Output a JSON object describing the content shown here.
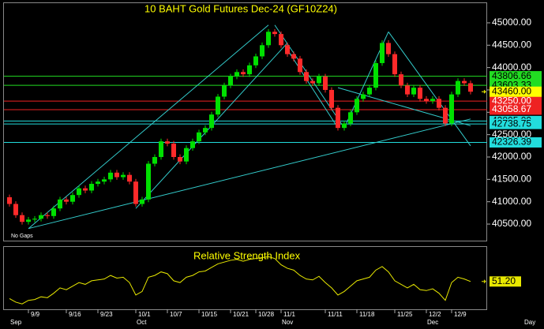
{
  "chart_data": {
    "type": "candlestick",
    "title": "10 BAHT  Gold Futures Dec-24  (GF10Z24)",
    "footnote": "No Gaps",
    "x_label": "Day",
    "categories": [
      null,
      null,
      null,
      "9/9",
      null,
      null,
      null,
      null,
      null,
      "9/16",
      null,
      null,
      null,
      null,
      "9/23",
      null,
      null,
      null,
      null,
      null,
      "10/1",
      null,
      null,
      null,
      null,
      "10/7",
      null,
      null,
      null,
      null,
      "10/15",
      null,
      null,
      null,
      null,
      "10/21",
      null,
      null,
      null,
      "10/28",
      null,
      null,
      null,
      "11/1",
      null,
      null,
      null,
      null,
      null,
      null,
      "11/11",
      null,
      null,
      null,
      null,
      "11/18",
      null,
      null,
      null,
      null,
      null,
      "11/25",
      null,
      null,
      null,
      null,
      "12/2",
      null,
      null,
      null,
      "12/9",
      null,
      null,
      null
    ],
    "months": [
      "Sep",
      null,
      null,
      null,
      null,
      null,
      null,
      null,
      null,
      null,
      null,
      null,
      null,
      null,
      null,
      null,
      null,
      null,
      null,
      null,
      "Oct",
      null,
      null,
      null,
      null,
      null,
      null,
      null,
      null,
      null,
      null,
      null,
      null,
      null,
      null,
      null,
      null,
      null,
      null,
      null,
      null,
      null,
      null,
      "Nov",
      null,
      null,
      null,
      null,
      null,
      null,
      null,
      null,
      null,
      null,
      null,
      null,
      null,
      null,
      null,
      null,
      null,
      null,
      null,
      null,
      null,
      null,
      "Dec",
      null,
      null,
      null,
      null,
      null,
      null,
      null
    ],
    "open": [
      41100,
      40950,
      40700,
      40550,
      40600,
      40620,
      40700,
      40680,
      40850,
      41050,
      41000,
      41150,
      41300,
      41250,
      41400,
      41450,
      41500,
      41650,
      41550,
      41600,
      41450,
      40950,
      41050,
      41850,
      42000,
      42350,
      42300,
      42000,
      41900,
      42200,
      42350,
      42550,
      42650,
      42950,
      43350,
      43600,
      43800,
      43900,
      43850,
      44050,
      44250,
      44500,
      44800,
      44750,
      44500,
      44300,
      44200,
      43900,
      43700,
      43650,
      43800,
      43500,
      43100,
      42650,
      42750,
      43000,
      43300,
      43400,
      43550,
      44100,
      44550,
      44300,
      43850,
      43600,
      43400,
      43550,
      43300,
      43250,
      43300,
      43100,
      42750,
      43400,
      43700,
      43650
    ],
    "high": [
      41160,
      41010,
      40760,
      40660,
      40680,
      40760,
      40760,
      40910,
      41110,
      41110,
      41210,
      41360,
      41360,
      41460,
      41510,
      41560,
      41710,
      41710,
      41660,
      41660,
      41510,
      41110,
      41910,
      42060,
      42410,
      42410,
      42360,
      42060,
      42260,
      42410,
      42610,
      42710,
      43010,
      43410,
      43660,
      43860,
      43960,
      43960,
      44110,
      44310,
      44560,
      44860,
      44860,
      44810,
      44560,
      44360,
      44260,
      43960,
      43760,
      43860,
      43860,
      43560,
      43160,
      42810,
      43060,
      43360,
      43460,
      43610,
      44160,
      44610,
      44610,
      44360,
      43910,
      43660,
      43610,
      43610,
      43360,
      43360,
      43360,
      43160,
      43460,
      43760,
      43760,
      43710
    ],
    "low": [
      40890,
      40640,
      40490,
      40490,
      40540,
      40560,
      40620,
      40620,
      40790,
      40940,
      40940,
      41090,
      41190,
      41190,
      41340,
      41390,
      41440,
      41490,
      41490,
      41390,
      40890,
      40890,
      40990,
      41790,
      41940,
      42240,
      41940,
      41840,
      41840,
      42140,
      42290,
      42490,
      42590,
      42890,
      43290,
      43540,
      43740,
      43790,
      43790,
      43990,
      44190,
      44440,
      44690,
      44440,
      44240,
      44140,
      43840,
      43640,
      43590,
      43590,
      43440,
      43040,
      42590,
      42590,
      42690,
      42940,
      43240,
      43340,
      43490,
      44040,
      44240,
      43790,
      43540,
      43340,
      43340,
      43240,
      43190,
      43190,
      43040,
      42690,
      42690,
      43340,
      43590,
      43400
    ],
    "close": [
      40950,
      40700,
      40550,
      40600,
      40620,
      40700,
      40680,
      40850,
      41050,
      41000,
      41150,
      41300,
      41250,
      41400,
      41450,
      41500,
      41650,
      41550,
      41600,
      41450,
      40950,
      41050,
      41850,
      42000,
      42350,
      42300,
      42000,
      41900,
      42200,
      42350,
      42550,
      42650,
      42950,
      43350,
      43600,
      43800,
      43900,
      43850,
      44050,
      44250,
      44500,
      44800,
      44750,
      44500,
      44300,
      44200,
      43900,
      43700,
      43650,
      43800,
      43500,
      43100,
      42650,
      42750,
      43000,
      43300,
      43400,
      43550,
      44100,
      44550,
      44300,
      43850,
      43600,
      43400,
      43550,
      43300,
      43250,
      43300,
      43100,
      42750,
      43400,
      43700,
      43650,
      43460
    ],
    "up_color": "#00e000",
    "down_color": "#ff2a2a",
    "ylim": [
      40130,
      45440
    ],
    "yticks": [
      {
        "value": 40500,
        "label": "40500.00"
      },
      {
        "value": 41000,
        "label": "41000.00"
      },
      {
        "value": 41500,
        "label": "41500.00"
      },
      {
        "value": 42000,
        "label": "42000.00"
      },
      {
        "value": 42500,
        "label": "42500.00"
      },
      {
        "value": 43000,
        "label": "43000.00"
      },
      {
        "value": 43500,
        "label": "43500.00"
      },
      {
        "value": 44000,
        "label": "44000.00"
      },
      {
        "value": 44500,
        "label": "44500.00"
      },
      {
        "value": 45000,
        "label": "45000.00"
      }
    ],
    "levels": [
      {
        "value": 43806.66,
        "label": "43806.66",
        "color": "#22dd22"
      },
      {
        "value": 43603.33,
        "label": "43603.33",
        "color": "#22dd22"
      },
      {
        "value": 43250,
        "label": "43250.00",
        "color": "#ee2222"
      },
      {
        "value": 43058.67,
        "label": "43058.67",
        "color": "#ee2222"
      },
      {
        "value": 42805,
        "label": "42805.00",
        "color": "#22dddd"
      },
      {
        "value": 42738.75,
        "label": "42738.75",
        "color": "#22dddd"
      },
      {
        "value": 42326.39,
        "label": "42326.39",
        "color": "#22dddd"
      }
    ],
    "last_price": {
      "value": 43460,
      "label": "43460.00",
      "color": "#ffff00"
    },
    "trendline_color": "#33cccc",
    "trendlines": [
      {
        "x": [
          3,
          41
        ],
        "y": [
          40400,
          44950
        ]
      },
      {
        "x": [
          3,
          73
        ],
        "y": [
          40400,
          42850
        ]
      },
      {
        "x": [
          20,
          44
        ],
        "y": [
          40850,
          44550
        ]
      },
      {
        "x": [
          42,
          53
        ],
        "y": [
          44950,
          42650
        ]
      },
      {
        "x": [
          53,
          60
        ],
        "y": [
          42650,
          44800
        ]
      },
      {
        "x": [
          60,
          73
        ],
        "y": [
          44800,
          42250
        ]
      },
      {
        "x": [
          44,
          52
        ],
        "y": [
          44400,
          42650
        ]
      },
      {
        "x": [
          52,
          73
        ],
        "y": [
          43550,
          42700
        ]
      }
    ],
    "indicator": {
      "title": "Relative Strength Index",
      "color": "#e8e800",
      "ylim": [
        20,
        90
      ],
      "values": [
        32,
        28,
        26,
        30,
        31,
        34,
        33,
        38,
        44,
        42,
        46,
        50,
        48,
        52,
        53,
        54,
        58,
        55,
        56,
        50,
        36,
        40,
        56,
        58,
        62,
        60,
        52,
        50,
        56,
        58,
        62,
        63,
        67,
        71,
        73,
        75,
        76,
        74,
        76,
        77,
        78,
        79,
        77,
        70,
        66,
        64,
        58,
        54,
        53,
        57,
        50,
        44,
        36,
        40,
        46,
        52,
        54,
        56,
        64,
        68,
        62,
        52,
        48,
        44,
        48,
        42,
        41,
        43,
        38,
        30,
        50,
        56,
        54,
        51.2
      ],
      "last_value_label": "51.20"
    }
  }
}
